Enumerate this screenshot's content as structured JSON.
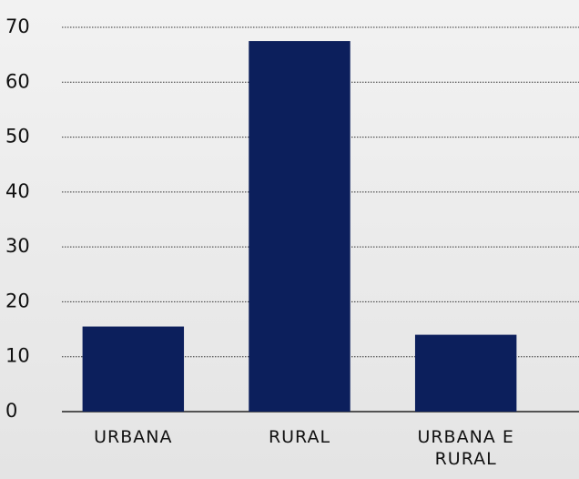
{
  "chart_data": {
    "type": "bar",
    "categories": [
      "URBANA",
      "RURAL",
      "URBANA E RURAL"
    ],
    "values": [
      15.5,
      67.5,
      14
    ],
    "color": "#0c1f5c",
    "ylim": [
      0,
      70
    ],
    "yticks": [
      0,
      10,
      20,
      30,
      40,
      50,
      60,
      70
    ],
    "grid": true
  }
}
